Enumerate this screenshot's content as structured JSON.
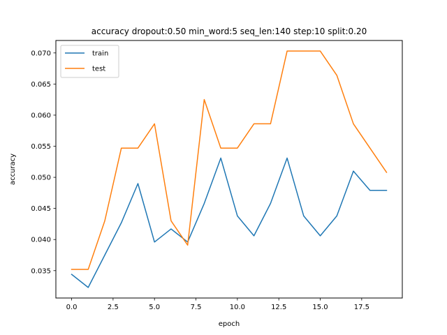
{
  "chart_data": {
    "type": "line",
    "title": "accuracy dropout:0.50 min_word:5 seq_len:140 step:10 split:0.20",
    "xlabel": "epoch",
    "ylabel": "accuracy",
    "xlim": [
      -0.95,
      19.95
    ],
    "ylim": [
      0.0306,
      0.072
    ],
    "x_ticks": [
      0.0,
      2.5,
      5.0,
      7.5,
      10.0,
      12.5,
      15.0,
      17.5
    ],
    "x_tick_labels": [
      "0.0",
      "2.5",
      "5.0",
      "7.5",
      "10.0",
      "12.5",
      "15.0",
      "17.5"
    ],
    "y_ticks": [
      0.035,
      0.04,
      0.045,
      0.05,
      0.055,
      0.06,
      0.065,
      0.07
    ],
    "y_tick_labels": [
      "0.035",
      "0.040",
      "0.045",
      "0.050",
      "0.055",
      "0.060",
      "0.065",
      "0.070"
    ],
    "legend_position": "top-left",
    "grid": false,
    "x": [
      0,
      1,
      2,
      3,
      4,
      5,
      6,
      7,
      8,
      9,
      10,
      11,
      12,
      13,
      14,
      15,
      16,
      17,
      18,
      19
    ],
    "series": [
      {
        "name": "train",
        "color": "#1f77b4",
        "values": [
          0.0344,
          0.0323,
          0.0375,
          0.0427,
          0.049,
          0.0396,
          0.0417,
          0.0396,
          0.0458,
          0.0531,
          0.0438,
          0.0406,
          0.0458,
          0.0531,
          0.0438,
          0.0406,
          0.0438,
          0.051,
          0.0479,
          0.0479
        ]
      },
      {
        "name": "test",
        "color": "#ff7f0e",
        "values": [
          0.0352,
          0.0352,
          0.043,
          0.0547,
          0.0547,
          0.0586,
          0.043,
          0.0391,
          0.0625,
          0.0547,
          0.0547,
          0.0586,
          0.0586,
          0.0703,
          0.0703,
          0.0703,
          0.0664,
          0.0586,
          0.0547,
          0.0508
        ]
      }
    ]
  }
}
